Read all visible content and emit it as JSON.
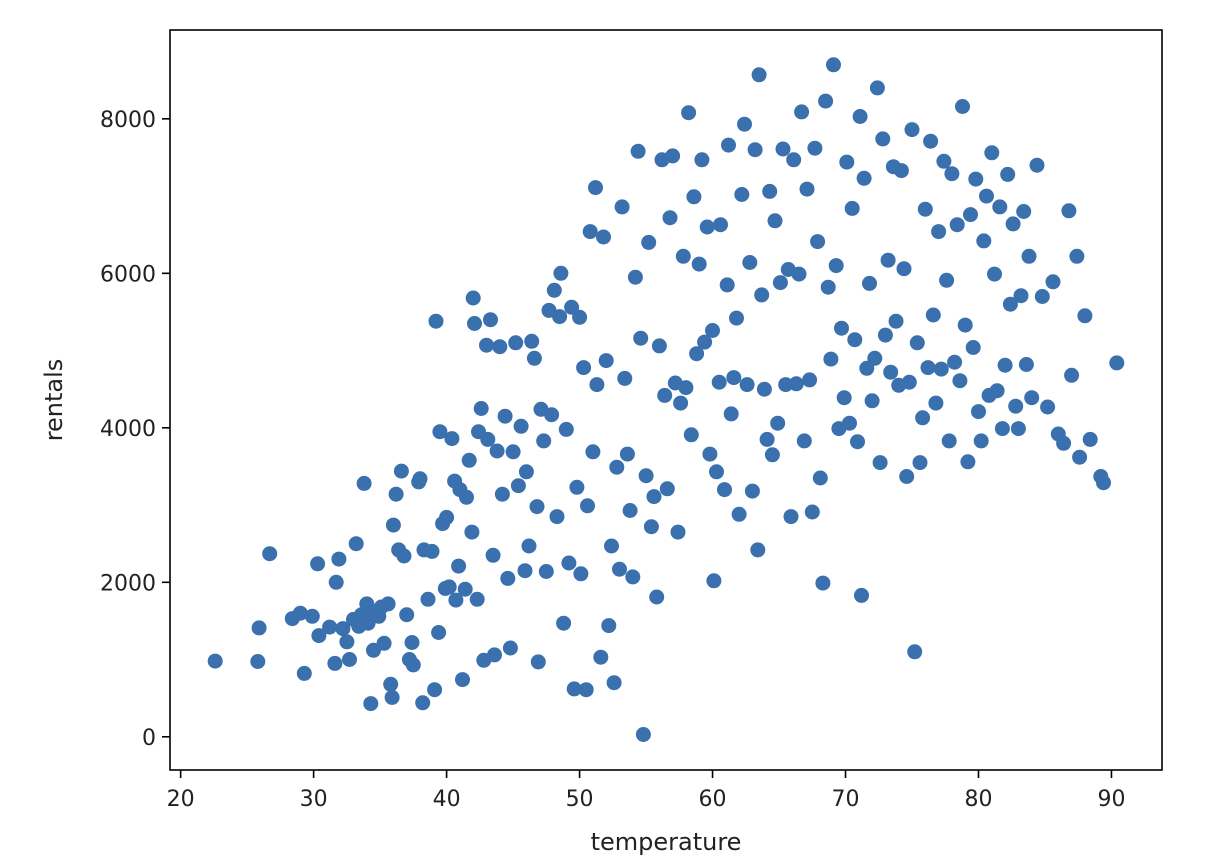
{
  "chart_data": {
    "type": "scatter",
    "title": "",
    "xlabel": "temperature",
    "ylabel": "rentals",
    "xlim": [
      19.2,
      93.8
    ],
    "ylim": [
      -430,
      9150
    ],
    "xticks": [
      20,
      30,
      40,
      50,
      60,
      70,
      80,
      90
    ],
    "yticks": [
      0,
      2000,
      4000,
      6000,
      8000
    ],
    "grid": false,
    "legend": "none",
    "marker_color": "#3a70ad",
    "series": [
      {
        "points": [
          [
            22.6,
            980
          ],
          [
            25.8,
            975
          ],
          [
            25.9,
            1410
          ],
          [
            26.7,
            2370
          ],
          [
            28.4,
            1530
          ],
          [
            29.0,
            1600
          ],
          [
            29.3,
            820
          ],
          [
            29.9,
            1560
          ],
          [
            30.3,
            2240
          ],
          [
            30.4,
            1310
          ],
          [
            31.2,
            1420
          ],
          [
            31.6,
            950
          ],
          [
            31.7,
            2000
          ],
          [
            31.9,
            2300
          ],
          [
            32.2,
            1400
          ],
          [
            32.5,
            1230
          ],
          [
            32.7,
            1000
          ],
          [
            33.0,
            1520
          ],
          [
            33.2,
            2500
          ],
          [
            33.4,
            1430
          ],
          [
            33.6,
            1580
          ],
          [
            33.8,
            3280
          ],
          [
            34.0,
            1720
          ],
          [
            34.1,
            1470
          ],
          [
            34.3,
            430
          ],
          [
            34.5,
            1120
          ],
          [
            34.6,
            1620
          ],
          [
            34.9,
            1560
          ],
          [
            35.1,
            1680
          ],
          [
            35.3,
            1210
          ],
          [
            35.6,
            1720
          ],
          [
            35.8,
            680
          ],
          [
            35.9,
            510
          ],
          [
            36.0,
            2740
          ],
          [
            36.2,
            3140
          ],
          [
            36.4,
            2420
          ],
          [
            36.6,
            3440
          ],
          [
            36.8,
            2340
          ],
          [
            37.0,
            1580
          ],
          [
            37.2,
            1000
          ],
          [
            37.4,
            1220
          ],
          [
            37.5,
            930
          ],
          [
            37.9,
            3300
          ],
          [
            38.0,
            3340
          ],
          [
            38.2,
            440
          ],
          [
            38.3,
            2420
          ],
          [
            38.6,
            1780
          ],
          [
            38.9,
            2400
          ],
          [
            39.1,
            610
          ],
          [
            39.2,
            5380
          ],
          [
            39.4,
            1350
          ],
          [
            39.5,
            3950
          ],
          [
            39.7,
            2760
          ],
          [
            39.9,
            1920
          ],
          [
            40.0,
            2840
          ],
          [
            40.2,
            1940
          ],
          [
            40.4,
            3860
          ],
          [
            40.6,
            3310
          ],
          [
            40.7,
            1770
          ],
          [
            40.9,
            2210
          ],
          [
            41.0,
            3200
          ],
          [
            41.2,
            740
          ],
          [
            41.4,
            1910
          ],
          [
            41.5,
            3100
          ],
          [
            41.7,
            3580
          ],
          [
            41.9,
            2650
          ],
          [
            42.0,
            5680
          ],
          [
            42.1,
            5350
          ],
          [
            42.3,
            1780
          ],
          [
            42.4,
            3950
          ],
          [
            42.6,
            4250
          ],
          [
            42.8,
            990
          ],
          [
            43.0,
            5070
          ],
          [
            43.1,
            3850
          ],
          [
            43.3,
            5400
          ],
          [
            43.5,
            2350
          ],
          [
            43.6,
            1060
          ],
          [
            43.8,
            3700
          ],
          [
            44.0,
            5050
          ],
          [
            44.2,
            3140
          ],
          [
            44.4,
            4150
          ],
          [
            44.6,
            2050
          ],
          [
            44.8,
            1150
          ],
          [
            45.0,
            3690
          ],
          [
            45.2,
            5100
          ],
          [
            45.4,
            3250
          ],
          [
            45.6,
            4020
          ],
          [
            45.9,
            2150
          ],
          [
            46.0,
            3430
          ],
          [
            46.2,
            2470
          ],
          [
            46.4,
            5120
          ],
          [
            46.6,
            4900
          ],
          [
            46.8,
            2980
          ],
          [
            46.9,
            970
          ],
          [
            47.1,
            4240
          ],
          [
            47.3,
            3830
          ],
          [
            47.5,
            2140
          ],
          [
            47.7,
            5520
          ],
          [
            47.9,
            4170
          ],
          [
            48.1,
            5780
          ],
          [
            48.3,
            2850
          ],
          [
            48.5,
            5440
          ],
          [
            48.6,
            6000
          ],
          [
            48.8,
            1470
          ],
          [
            49.0,
            3980
          ],
          [
            49.2,
            2250
          ],
          [
            49.4,
            5560
          ],
          [
            49.6,
            620
          ],
          [
            49.8,
            3230
          ],
          [
            50.0,
            5430
          ],
          [
            50.1,
            2110
          ],
          [
            50.3,
            4780
          ],
          [
            50.5,
            610
          ],
          [
            50.6,
            2990
          ],
          [
            50.8,
            6540
          ],
          [
            51.0,
            3690
          ],
          [
            51.2,
            7110
          ],
          [
            51.3,
            4560
          ],
          [
            51.6,
            1030
          ],
          [
            51.8,
            6470
          ],
          [
            52.0,
            4870
          ],
          [
            52.2,
            1440
          ],
          [
            52.4,
            2470
          ],
          [
            52.6,
            700
          ],
          [
            52.8,
            3490
          ],
          [
            53.0,
            2170
          ],
          [
            53.2,
            6860
          ],
          [
            53.4,
            4640
          ],
          [
            53.6,
            3660
          ],
          [
            53.8,
            2930
          ],
          [
            54.0,
            2070
          ],
          [
            54.2,
            5950
          ],
          [
            54.4,
            7580
          ],
          [
            54.6,
            5160
          ],
          [
            54.8,
            30
          ],
          [
            55.0,
            3380
          ],
          [
            55.2,
            6400
          ],
          [
            55.4,
            2720
          ],
          [
            55.6,
            3110
          ],
          [
            55.8,
            1810
          ],
          [
            56.0,
            5060
          ],
          [
            56.2,
            7470
          ],
          [
            56.4,
            4420
          ],
          [
            56.6,
            3210
          ],
          [
            56.8,
            6720
          ],
          [
            57.0,
            7520
          ],
          [
            57.2,
            4580
          ],
          [
            57.4,
            2650
          ],
          [
            57.6,
            4320
          ],
          [
            57.8,
            6220
          ],
          [
            58.0,
            4520
          ],
          [
            58.2,
            8080
          ],
          [
            58.4,
            3910
          ],
          [
            58.6,
            6990
          ],
          [
            58.8,
            4960
          ],
          [
            59.0,
            6120
          ],
          [
            59.2,
            7470
          ],
          [
            59.4,
            5110
          ],
          [
            59.6,
            6600
          ],
          [
            59.8,
            3660
          ],
          [
            60.0,
            5260
          ],
          [
            60.1,
            2020
          ],
          [
            60.3,
            3430
          ],
          [
            60.5,
            4590
          ],
          [
            60.6,
            6630
          ],
          [
            60.9,
            3200
          ],
          [
            61.1,
            5850
          ],
          [
            61.2,
            7660
          ],
          [
            61.4,
            4180
          ],
          [
            61.6,
            4650
          ],
          [
            61.8,
            5420
          ],
          [
            62.0,
            2880
          ],
          [
            62.2,
            7020
          ],
          [
            62.4,
            7930
          ],
          [
            62.6,
            4560
          ],
          [
            62.8,
            6140
          ],
          [
            63.0,
            3180
          ],
          [
            63.2,
            7600
          ],
          [
            63.4,
            2420
          ],
          [
            63.5,
            8570
          ],
          [
            63.7,
            5720
          ],
          [
            63.9,
            4500
          ],
          [
            64.1,
            3850
          ],
          [
            64.3,
            7060
          ],
          [
            64.5,
            3650
          ],
          [
            64.7,
            6680
          ],
          [
            64.9,
            4060
          ],
          [
            65.1,
            5880
          ],
          [
            65.3,
            7610
          ],
          [
            65.5,
            4560
          ],
          [
            65.7,
            6050
          ],
          [
            65.9,
            2850
          ],
          [
            66.1,
            7470
          ],
          [
            66.3,
            4570
          ],
          [
            66.5,
            5990
          ],
          [
            66.7,
            8090
          ],
          [
            66.9,
            3830
          ],
          [
            67.1,
            7090
          ],
          [
            67.3,
            4620
          ],
          [
            67.5,
            2910
          ],
          [
            67.7,
            7620
          ],
          [
            67.9,
            6410
          ],
          [
            68.1,
            3350
          ],
          [
            68.3,
            1990
          ],
          [
            68.5,
            8230
          ],
          [
            68.7,
            5820
          ],
          [
            68.9,
            4890
          ],
          [
            69.1,
            8700
          ],
          [
            69.3,
            6100
          ],
          [
            69.5,
            3990
          ],
          [
            69.7,
            5290
          ],
          [
            69.9,
            4390
          ],
          [
            70.1,
            7440
          ],
          [
            70.3,
            4060
          ],
          [
            70.5,
            6840
          ],
          [
            70.7,
            5140
          ],
          [
            70.9,
            3820
          ],
          [
            71.1,
            8030
          ],
          [
            71.2,
            1830
          ],
          [
            71.4,
            7230
          ],
          [
            71.6,
            4770
          ],
          [
            71.8,
            5870
          ],
          [
            72.0,
            4350
          ],
          [
            72.2,
            4900
          ],
          [
            72.4,
            8400
          ],
          [
            72.6,
            3550
          ],
          [
            72.8,
            7740
          ],
          [
            73.0,
            5200
          ],
          [
            73.2,
            6170
          ],
          [
            73.4,
            4720
          ],
          [
            73.6,
            7380
          ],
          [
            73.8,
            5380
          ],
          [
            74.0,
            4550
          ],
          [
            74.2,
            7330
          ],
          [
            74.4,
            6060
          ],
          [
            74.6,
            3370
          ],
          [
            74.8,
            4590
          ],
          [
            75.0,
            7860
          ],
          [
            75.2,
            1100
          ],
          [
            75.4,
            5100
          ],
          [
            75.6,
            3550
          ],
          [
            75.8,
            4130
          ],
          [
            76.0,
            6830
          ],
          [
            76.2,
            4780
          ],
          [
            76.4,
            7710
          ],
          [
            76.6,
            5460
          ],
          [
            76.8,
            4320
          ],
          [
            77.0,
            6540
          ],
          [
            77.2,
            4760
          ],
          [
            77.4,
            7450
          ],
          [
            77.6,
            5910
          ],
          [
            77.8,
            3830
          ],
          [
            78.0,
            7290
          ],
          [
            78.2,
            4850
          ],
          [
            78.4,
            6630
          ],
          [
            78.6,
            4610
          ],
          [
            78.8,
            8160
          ],
          [
            79.0,
            5330
          ],
          [
            79.2,
            3560
          ],
          [
            79.4,
            6760
          ],
          [
            79.6,
            5040
          ],
          [
            79.8,
            7220
          ],
          [
            80.0,
            4210
          ],
          [
            80.2,
            3830
          ],
          [
            80.4,
            6420
          ],
          [
            80.6,
            7000
          ],
          [
            80.8,
            4420
          ],
          [
            81.0,
            7560
          ],
          [
            81.2,
            5990
          ],
          [
            81.4,
            4480
          ],
          [
            81.6,
            6860
          ],
          [
            81.8,
            3990
          ],
          [
            82.0,
            4810
          ],
          [
            82.2,
            7280
          ],
          [
            82.4,
            5600
          ],
          [
            82.6,
            6640
          ],
          [
            82.8,
            4280
          ],
          [
            83.0,
            3990
          ],
          [
            83.2,
            5710
          ],
          [
            83.4,
            6800
          ],
          [
            83.6,
            4820
          ],
          [
            83.8,
            6220
          ],
          [
            84.0,
            4390
          ],
          [
            84.4,
            7400
          ],
          [
            84.8,
            5700
          ],
          [
            85.2,
            4270
          ],
          [
            85.6,
            5890
          ],
          [
            86.0,
            3920
          ],
          [
            86.4,
            3800
          ],
          [
            86.8,
            6810
          ],
          [
            87.0,
            4680
          ],
          [
            87.4,
            6220
          ],
          [
            87.6,
            3620
          ],
          [
            88.0,
            5450
          ],
          [
            88.4,
            3850
          ],
          [
            89.2,
            3370
          ],
          [
            89.4,
            3290
          ],
          [
            90.4,
            4840
          ]
        ]
      }
    ]
  }
}
